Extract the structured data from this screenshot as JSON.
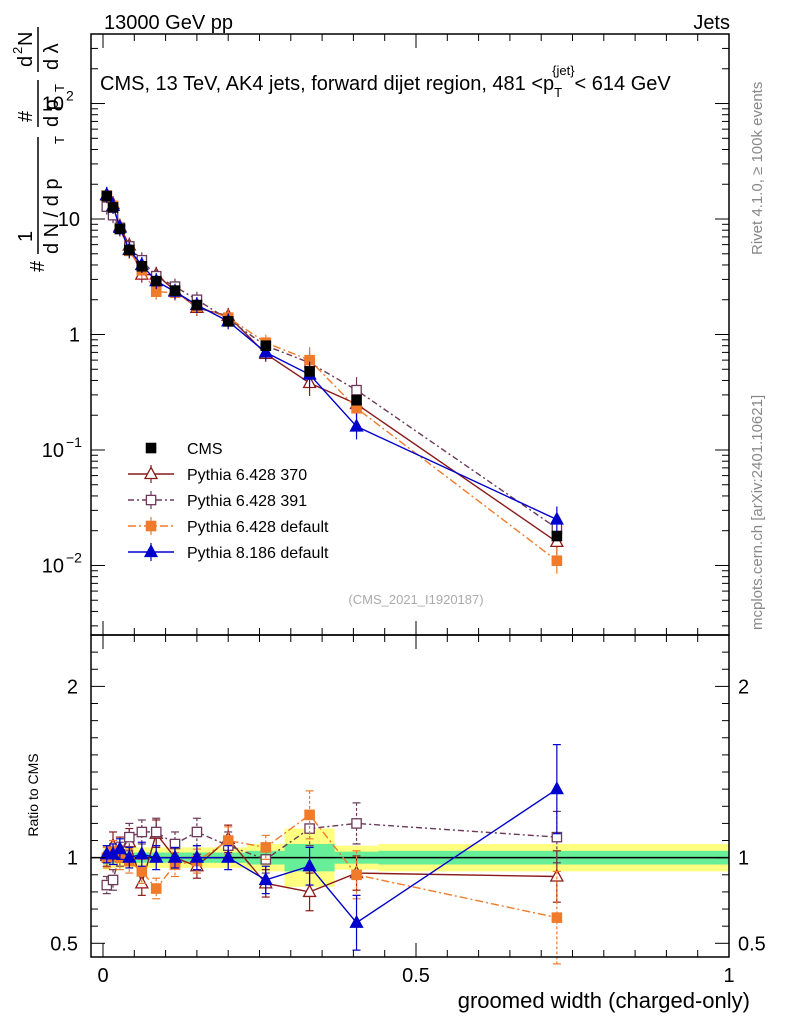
{
  "header": {
    "left": "13000 GeV pp",
    "right": "Jets"
  },
  "chart_data": {
    "type": "line",
    "title_parts": [
      "CMS, 13 TeV, AK4 jets, forward dijet region, 481 <p",
      "T",
      "{jet}",
      "< 614 GeV"
    ],
    "ylabel_parts": {
      "hash1": "#",
      "frac_num": "1",
      "frac_den": "d N / d p",
      "T1": "T",
      "hash2": "#",
      "num": "d",
      "sup2": "2",
      "N": "N",
      "den1": "d p",
      "T2": "T",
      "dl": "d λ"
    },
    "xlabel": "groomed width (charged-only)",
    "ratio_ylabel": "Ratio to CMS",
    "watermark": "(CMS_2021_I1920187)",
    "side_right_top": "Rivet 4.1.0, ≥ 100k events",
    "side_right_bottom": "mcplots.cern.ch [arXiv:2401.10621]",
    "xlim": [
      0,
      1
    ],
    "ylim_log": [
      0.0025,
      400
    ],
    "ratio_ylim": [
      0.42,
      2.3
    ],
    "x_ticks": [
      {
        "v": 0,
        "label": "0"
      },
      {
        "v": 0.5,
        "label": "0.5"
      },
      {
        "v": 1,
        "label": "1"
      }
    ],
    "y_ticks": [
      {
        "v": 0.01,
        "base": "10",
        "exp": "−2"
      },
      {
        "v": 0.1,
        "base": "10",
        "exp": "−1"
      },
      {
        "v": 1,
        "base": "1",
        "exp": ""
      },
      {
        "v": 10,
        "base": "10",
        "exp": ""
      },
      {
        "v": 100,
        "base": "10",
        "exp": "2"
      }
    ],
    "ratio_ticks": [
      {
        "v": 0.5,
        "label": "0.5"
      },
      {
        "v": 1,
        "label": "1"
      },
      {
        "v": 2,
        "label": "2"
      }
    ],
    "x": [
      0.006,
      0.016,
      0.027,
      0.042,
      0.062,
      0.085,
      0.115,
      0.15,
      0.2,
      0.26,
      0.33,
      0.405,
      0.725
    ],
    "bin_edges": [
      0,
      0.012,
      0.02,
      0.035,
      0.05,
      0.075,
      0.1,
      0.13,
      0.17,
      0.23,
      0.29,
      0.37,
      0.44,
      1.0
    ],
    "cms": {
      "name": "CMS",
      "values": [
        15.8,
        12.6,
        8.2,
        5.4,
        3.9,
        2.9,
        2.4,
        1.8,
        1.3,
        0.8,
        0.48,
        0.27,
        0.018
      ]
    },
    "ratio_band": {
      "stat": [
        0.04,
        0.035,
        0.03,
        0.03,
        0.03,
        0.03,
        0.03,
        0.03,
        0.03,
        0.04,
        0.08,
        0.035,
        0.04
      ],
      "total": [
        0.07,
        0.06,
        0.06,
        0.06,
        0.06,
        0.06,
        0.06,
        0.06,
        0.06,
        0.08,
        0.17,
        0.07,
        0.08
      ]
    },
    "series": [
      {
        "name": "Pythia 6.428 370",
        "color": "#8b1a1a",
        "dash": "",
        "marker": "tri-open",
        "values": [
          16.0,
          13.5,
          8.6,
          5.9,
          3.3,
          3.3,
          2.4,
          1.7,
          1.45,
          0.68,
          0.38,
          0.25,
          0.016
        ],
        "ratio": [
          1.01,
          1.07,
          1.05,
          1.09,
          0.85,
          1.14,
          1.0,
          0.95,
          1.11,
          0.85,
          0.8,
          0.91,
          0.89
        ],
        "rerr": [
          0.06,
          0.08,
          0.07,
          0.08,
          0.07,
          0.08,
          0.06,
          0.07,
          0.08,
          0.08,
          0.11,
          0.1,
          0.15
        ]
      },
      {
        "name": "Pythia 6.428 391",
        "color": "#6b3a5a",
        "dash": "6,3,2,3",
        "marker": "sq-open",
        "values": [
          12.8,
          10.8,
          8.4,
          5.8,
          4.4,
          3.2,
          2.6,
          2.0,
          1.35,
          0.8,
          0.57,
          0.33,
          0.021
        ],
        "ratio": [
          0.84,
          0.87,
          1.02,
          1.12,
          1.15,
          1.15,
          1.08,
          1.15,
          1.07,
          0.99,
          1.17,
          1.2,
          1.12
        ],
        "rerr": [
          0.05,
          0.06,
          0.07,
          0.08,
          0.07,
          0.08,
          0.07,
          0.08,
          0.08,
          0.08,
          0.1,
          0.12,
          0.15
        ]
      },
      {
        "name": "Pythia 6.428 default",
        "color": "#f07b2a",
        "dash": "8,3,2,3",
        "marker": "sq-filled",
        "values": [
          16.0,
          13.0,
          8.2,
          5.3,
          3.6,
          2.35,
          2.3,
          1.75,
          1.4,
          0.85,
          0.6,
          0.23,
          0.011
        ],
        "ratio": [
          1.0,
          1.04,
          1.0,
          0.98,
          0.92,
          0.82,
          0.96,
          0.98,
          1.1,
          1.06,
          1.25,
          0.9,
          0.65
        ],
        "rerr": [
          0.06,
          0.06,
          0.07,
          0.07,
          0.07,
          0.06,
          0.07,
          0.07,
          0.08,
          0.07,
          0.14,
          0.14,
          0.27
        ]
      },
      {
        "name": "Pythia 8.186 default",
        "color": "#0000cc",
        "dash": "",
        "marker": "tri-filled",
        "values": [
          16.2,
          13.0,
          8.4,
          5.4,
          4.0,
          2.9,
          2.35,
          1.8,
          1.3,
          0.7,
          0.45,
          0.16,
          0.025
        ],
        "ratio": [
          1.02,
          1.02,
          1.05,
          1.0,
          1.02,
          1.0,
          1.0,
          1.0,
          1.0,
          0.87,
          0.95,
          0.62,
          1.4
        ],
        "rerr": [
          0.05,
          0.06,
          0.06,
          0.06,
          0.07,
          0.07,
          0.06,
          0.07,
          0.07,
          0.08,
          0.11,
          0.16,
          0.26
        ]
      }
    ]
  }
}
